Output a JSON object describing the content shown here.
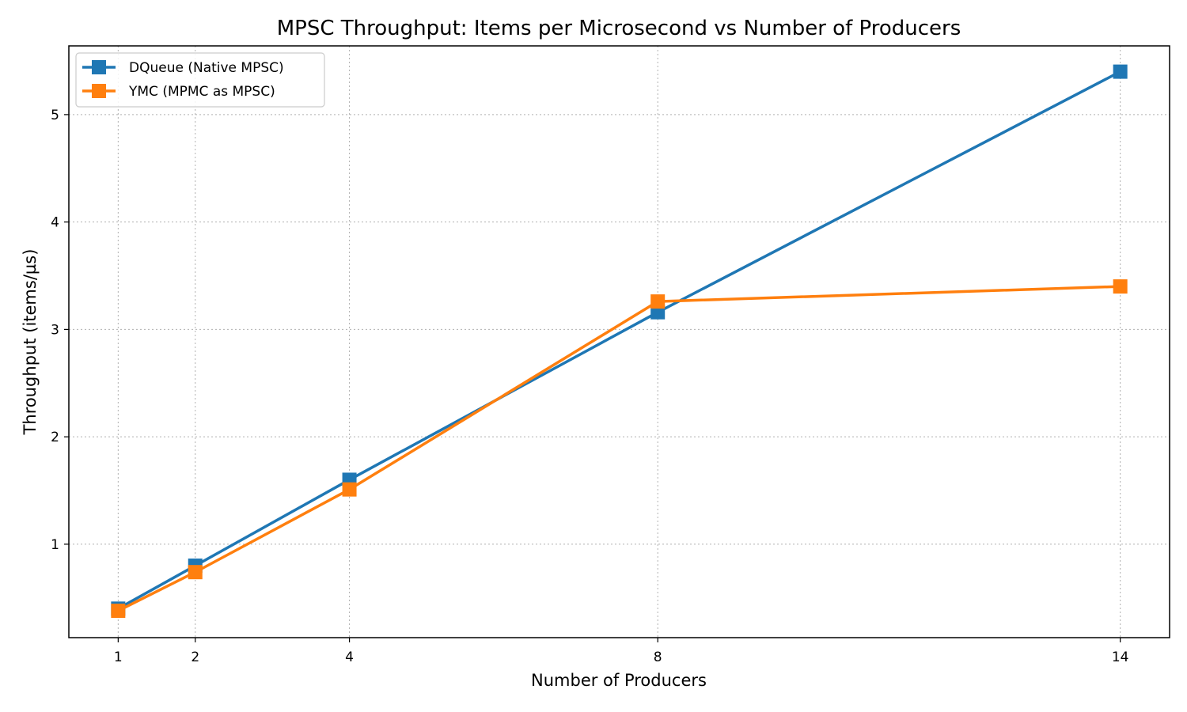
{
  "chart_data": {
    "type": "line",
    "title": "MPSC Throughput: Items per Microsecond vs Number of Producers",
    "xlabel": "Number of Producers",
    "ylabel": "Throughput (items/µs)",
    "x": [
      1,
      2,
      4,
      8,
      14
    ],
    "x_ticks": [
      "1",
      "2",
      "4",
      "8",
      "14"
    ],
    "y_ticks": [
      "1",
      "2",
      "3",
      "4",
      "5"
    ],
    "xlim": [
      0.36,
      14.64
    ],
    "ylim": [
      0.13,
      5.64
    ],
    "grid": true,
    "legend_position": "top-left",
    "series": [
      {
        "name": "DQueue (Native MPSC)",
        "color": "#1f77b4",
        "marker": "square",
        "values": [
          0.4,
          0.8,
          1.6,
          3.16,
          5.4
        ]
      },
      {
        "name": "YMC (MPMC as MPSC)",
        "color": "#ff7f0e",
        "marker": "square",
        "values": [
          0.38,
          0.74,
          1.51,
          3.26,
          3.4
        ]
      }
    ]
  }
}
